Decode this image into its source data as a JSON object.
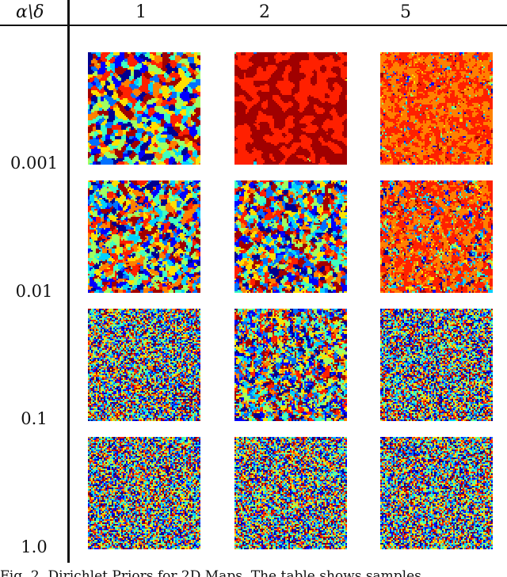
{
  "table": {
    "corner_label": "α\\δ",
    "columns": [
      "1",
      "2",
      "5"
    ],
    "rows": [
      "0.001",
      "0.01",
      "0.1",
      "1.0"
    ]
  },
  "colormap": [
    "#00008f",
    "#0000ff",
    "#0070ff",
    "#00d0ff",
    "#40ffc0",
    "#a0ff60",
    "#ffe000",
    "#ff8000",
    "#ff2000",
    "#a00000"
  ],
  "caption": "Fig. 2.    Dirichlet Priors for 2D Maps. The table shows samples"
}
